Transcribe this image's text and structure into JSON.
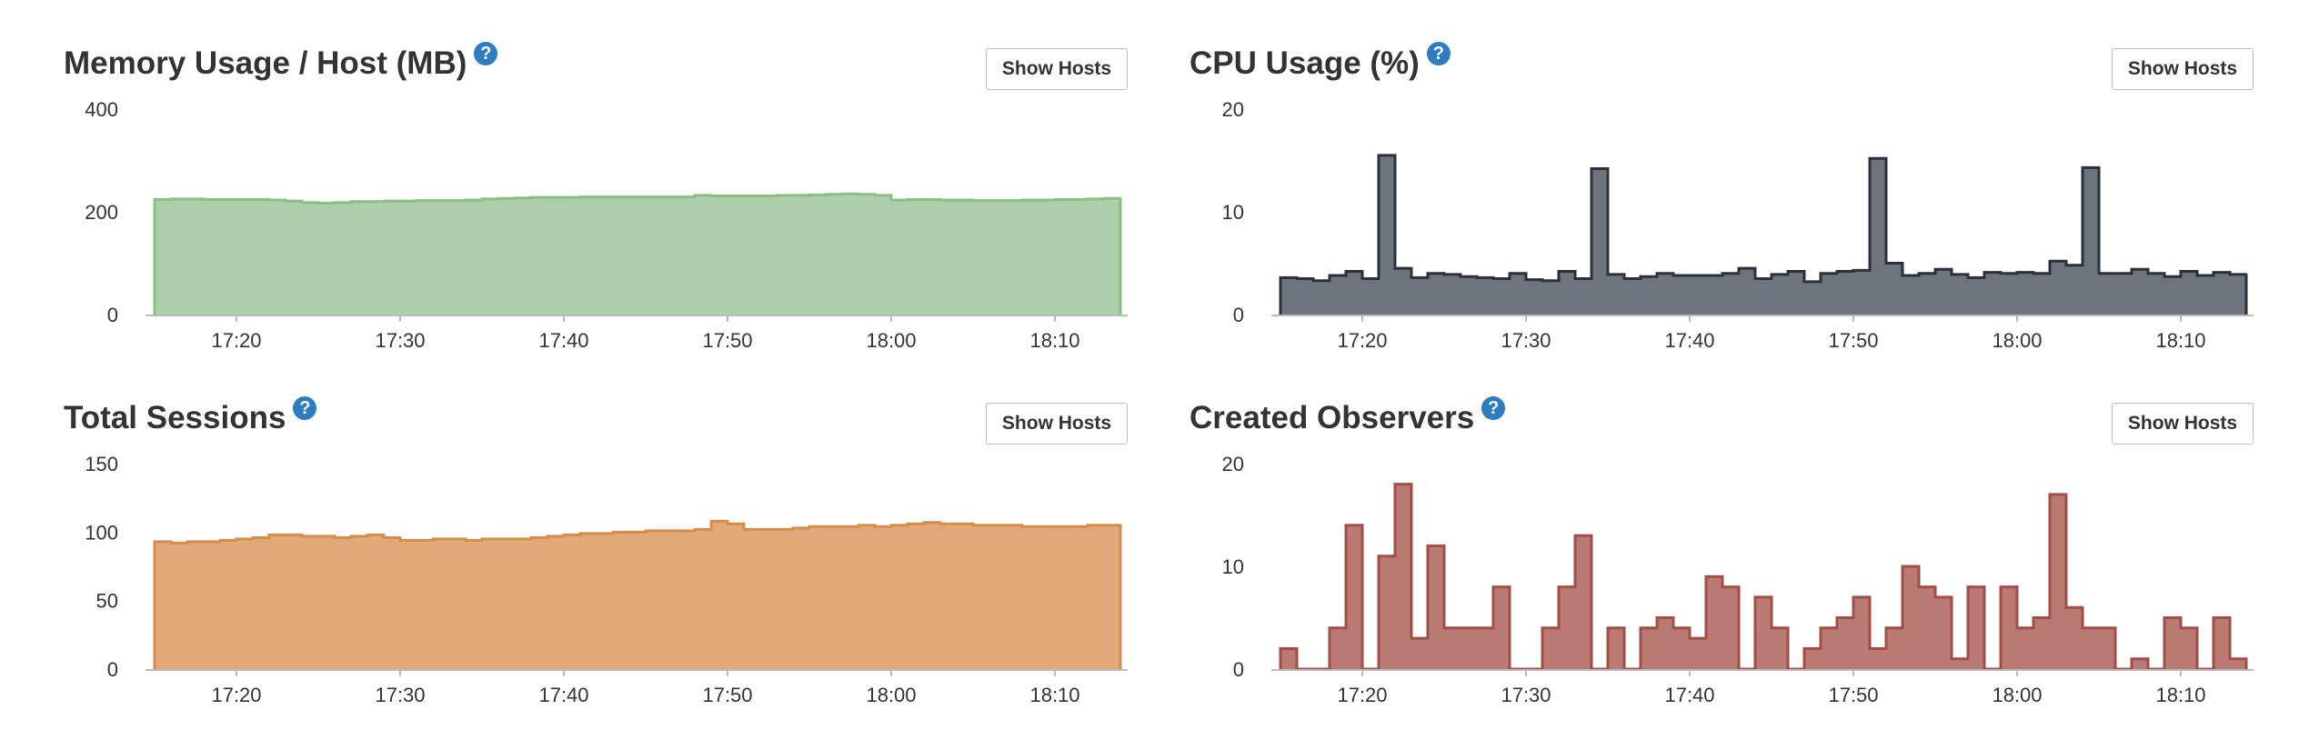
{
  "buttons": {
    "show_hosts": "Show Hosts"
  },
  "chart_data": [
    {
      "type": "area",
      "title": "Memory Usage / Host (MB)",
      "help_icon": "question-circle-icon",
      "color": "#7fba6f",
      "fill": "#adceab",
      "stroke": "#88bf83",
      "ylim": [
        0,
        400
      ],
      "yticks": [
        "400",
        "200",
        "0"
      ],
      "xlim": [
        "17:15",
        "18:14"
      ],
      "xticks": [
        "17:20",
        "17:30",
        "17:40",
        "17:50",
        "18:00",
        "18:10"
      ],
      "step": true,
      "x": [
        "17:15",
        "17:16",
        "17:17",
        "17:18",
        "17:19",
        "17:20",
        "17:21",
        "17:22",
        "17:23",
        "17:24",
        "17:25",
        "17:26",
        "17:27",
        "17:28",
        "17:29",
        "17:30",
        "17:31",
        "17:32",
        "17:33",
        "17:34",
        "17:35",
        "17:36",
        "17:37",
        "17:38",
        "17:39",
        "17:40",
        "17:41",
        "17:42",
        "17:43",
        "17:44",
        "17:45",
        "17:46",
        "17:47",
        "17:48",
        "17:49",
        "17:50",
        "17:51",
        "17:52",
        "17:53",
        "17:54",
        "17:55",
        "17:56",
        "17:57",
        "17:58",
        "17:59",
        "18:00",
        "18:01",
        "18:02",
        "18:03",
        "18:04",
        "18:05",
        "18:06",
        "18:07",
        "18:08",
        "18:09",
        "18:10",
        "18:11",
        "18:12",
        "18:13",
        "18:14"
      ],
      "values": [
        224,
        225,
        225,
        224,
        224,
        224,
        224,
        223,
        221,
        218,
        217,
        218,
        220,
        220,
        221,
        221,
        222,
        222,
        222,
        223,
        225,
        226,
        227,
        228,
        228,
        228,
        229,
        229,
        229,
        229,
        229,
        229,
        229,
        232,
        231,
        231,
        231,
        231,
        232,
        232,
        233,
        234,
        235,
        234,
        232,
        223,
        224,
        224,
        223,
        223,
        222,
        222,
        222,
        223,
        223,
        224,
        224,
        225,
        226,
        229
      ]
    },
    {
      "type": "area",
      "title": "CPU Usage (%)",
      "help_icon": "question-circle-icon",
      "fill": "#6e737e",
      "stroke": "#2b3039",
      "ylim": [
        0,
        20
      ],
      "yticks": [
        "20",
        "10",
        "0"
      ],
      "xlim": [
        "17:15",
        "18:14"
      ],
      "xticks": [
        "17:20",
        "17:30",
        "17:40",
        "17:50",
        "18:00",
        "18:10"
      ],
      "step": true,
      "x": [
        "17:15",
        "17:16",
        "17:17",
        "17:18",
        "17:19",
        "17:20",
        "17:21",
        "17:22",
        "17:23",
        "17:24",
        "17:25",
        "17:26",
        "17:27",
        "17:28",
        "17:29",
        "17:30",
        "17:31",
        "17:32",
        "17:33",
        "17:34",
        "17:35",
        "17:36",
        "17:37",
        "17:38",
        "17:39",
        "17:40",
        "17:41",
        "17:42",
        "17:43",
        "17:44",
        "17:45",
        "17:46",
        "17:47",
        "17:48",
        "17:49",
        "17:50",
        "17:51",
        "17:52",
        "17:53",
        "17:54",
        "17:55",
        "17:56",
        "17:57",
        "17:58",
        "17:59",
        "18:00",
        "18:01",
        "18:02",
        "18:03",
        "18:04",
        "18:05",
        "18:06",
        "18:07",
        "18:08",
        "18:09",
        "18:10",
        "18:11",
        "18:12",
        "18:13",
        "18:14"
      ],
      "values": [
        3.6,
        3.5,
        3.3,
        3.8,
        4.2,
        3.5,
        15.5,
        4.5,
        3.6,
        4.0,
        3.9,
        3.7,
        3.6,
        3.5,
        4.0,
        3.4,
        3.3,
        4.2,
        3.5,
        14.2,
        3.9,
        3.5,
        3.7,
        4.0,
        3.8,
        3.8,
        3.8,
        4.0,
        4.5,
        3.5,
        3.9,
        4.2,
        3.2,
        4.0,
        4.2,
        4.3,
        15.2,
        5.0,
        3.8,
        4.0,
        4.4,
        3.9,
        3.6,
        4.1,
        4.0,
        4.1,
        4.0,
        5.2,
        4.8,
        14.3,
        4.0,
        4.0,
        4.4,
        4.0,
        3.7,
        4.2,
        3.8,
        4.1,
        3.9,
        4.0
      ]
    },
    {
      "type": "area",
      "title": "Total Sessions",
      "help_icon": "question-circle-icon",
      "fill": "#dfa97a",
      "stroke": "#d88c49",
      "ylim": [
        0,
        150
      ],
      "yticks": [
        "150",
        "100",
        "50",
        "0"
      ],
      "xlim": [
        "17:15",
        "18:14"
      ],
      "xticks": [
        "17:20",
        "17:30",
        "17:40",
        "17:50",
        "18:00",
        "18:10"
      ],
      "step": true,
      "x": [
        "17:15",
        "17:16",
        "17:17",
        "17:18",
        "17:19",
        "17:20",
        "17:21",
        "17:22",
        "17:23",
        "17:24",
        "17:25",
        "17:26",
        "17:27",
        "17:28",
        "17:29",
        "17:30",
        "17:31",
        "17:32",
        "17:33",
        "17:34",
        "17:35",
        "17:36",
        "17:37",
        "17:38",
        "17:39",
        "17:40",
        "17:41",
        "17:42",
        "17:43",
        "17:44",
        "17:45",
        "17:46",
        "17:47",
        "17:48",
        "17:49",
        "17:50",
        "17:51",
        "17:52",
        "17:53",
        "17:54",
        "17:55",
        "17:56",
        "17:57",
        "17:58",
        "17:59",
        "18:00",
        "18:01",
        "18:02",
        "18:03",
        "18:04",
        "18:05",
        "18:06",
        "18:07",
        "18:08",
        "18:09",
        "18:10",
        "18:11",
        "18:12",
        "18:13",
        "18:14"
      ],
      "values": [
        93,
        92,
        93,
        93,
        94,
        95,
        96,
        98,
        98,
        97,
        97,
        96,
        97,
        98,
        96,
        94,
        94,
        95,
        95,
        94,
        95,
        95,
        95,
        96,
        97,
        98,
        99,
        99,
        100,
        100,
        101,
        101,
        101,
        102,
        108,
        106,
        102,
        102,
        102,
        103,
        104,
        104,
        104,
        105,
        104,
        105,
        106,
        107,
        106,
        106,
        105,
        105,
        105,
        104,
        104,
        104,
        104,
        105,
        105,
        104
      ]
    },
    {
      "type": "area",
      "title": "Created Observers",
      "help_icon": "question-circle-icon",
      "fill": "#b97a73",
      "stroke": "#a24d45",
      "ylim": [
        0,
        20
      ],
      "yticks": [
        "20",
        "10",
        "0"
      ],
      "xlim": [
        "17:15",
        "18:14"
      ],
      "xticks": [
        "17:20",
        "17:30",
        "17:40",
        "17:50",
        "18:00",
        "18:10"
      ],
      "step": true,
      "x": [
        "17:15",
        "17:16",
        "17:17",
        "17:18",
        "17:19",
        "17:20",
        "17:21",
        "17:22",
        "17:23",
        "17:24",
        "17:25",
        "17:26",
        "17:27",
        "17:28",
        "17:29",
        "17:30",
        "17:31",
        "17:32",
        "17:33",
        "17:34",
        "17:35",
        "17:36",
        "17:37",
        "17:38",
        "17:39",
        "17:40",
        "17:41",
        "17:42",
        "17:43",
        "17:44",
        "17:45",
        "17:46",
        "17:47",
        "17:48",
        "17:49",
        "17:50",
        "17:51",
        "17:52",
        "17:53",
        "17:54",
        "17:55",
        "17:56",
        "17:57",
        "17:58",
        "17:59",
        "18:00",
        "18:01",
        "18:02",
        "18:03",
        "18:04",
        "18:05",
        "18:06",
        "18:07",
        "18:08",
        "18:09",
        "18:10",
        "18:11",
        "18:12",
        "18:13",
        "18:14"
      ],
      "values": [
        2,
        0,
        0,
        4,
        14,
        0,
        11,
        18,
        3,
        12,
        4,
        4,
        4,
        8,
        0,
        0,
        4,
        8,
        13,
        0,
        4,
        0,
        4,
        5,
        4,
        3,
        9,
        8,
        0,
        7,
        4,
        0,
        2,
        4,
        5,
        7,
        2,
        4,
        10,
        8,
        7,
        1,
        8,
        0,
        8,
        4,
        5,
        17,
        6,
        4,
        4,
        0,
        1,
        0,
        5,
        4,
        0,
        5,
        1,
        0
      ]
    }
  ]
}
